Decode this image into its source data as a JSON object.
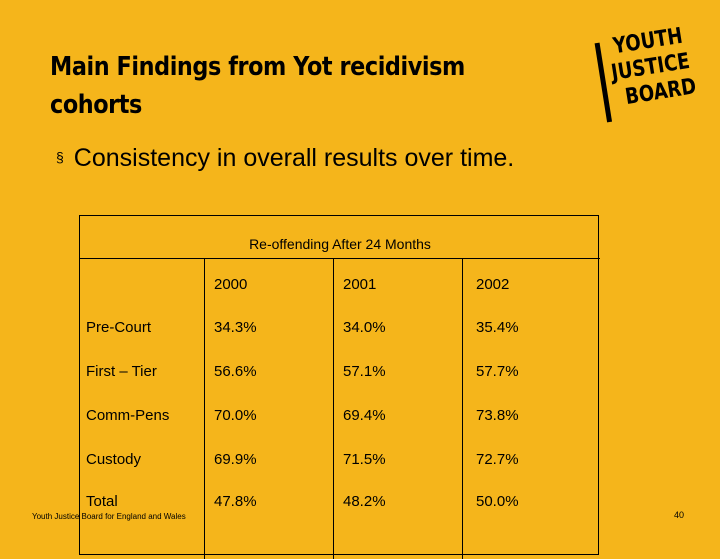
{
  "slide": {
    "title_line1": "Main Findings from Yot recidivism",
    "title_line2": "cohorts",
    "bullet_marker": "§",
    "bullet_text": "Consistency in overall results over time.",
    "logo": {
      "line1": "YOUTH",
      "line2": "JUSTICE",
      "line3": "BOARD"
    },
    "footer_text": "Youth Justice Board for England and Wales",
    "page_number": "40",
    "background_color": "#F5B51B"
  },
  "table": {
    "caption": "Re-offending After 24 Months",
    "years": [
      "2000",
      "2001",
      "2002"
    ],
    "rows": [
      {
        "label": "Pre-Court",
        "values": [
          "34.3%",
          "34.0%",
          "35.4%"
        ]
      },
      {
        "label": "First – Tier",
        "values": [
          "56.6%",
          "57.1%",
          "57.7%"
        ]
      },
      {
        "label": "Comm-Pens",
        "values": [
          "70.0%",
          "69.4%",
          "73.8%"
        ]
      },
      {
        "label": "Custody",
        "values": [
          "69.9%",
          "71.5%",
          "72.7%"
        ]
      },
      {
        "label": "Total",
        "values": [
          "47.8%",
          "48.2%",
          "50.0%"
        ]
      }
    ]
  }
}
